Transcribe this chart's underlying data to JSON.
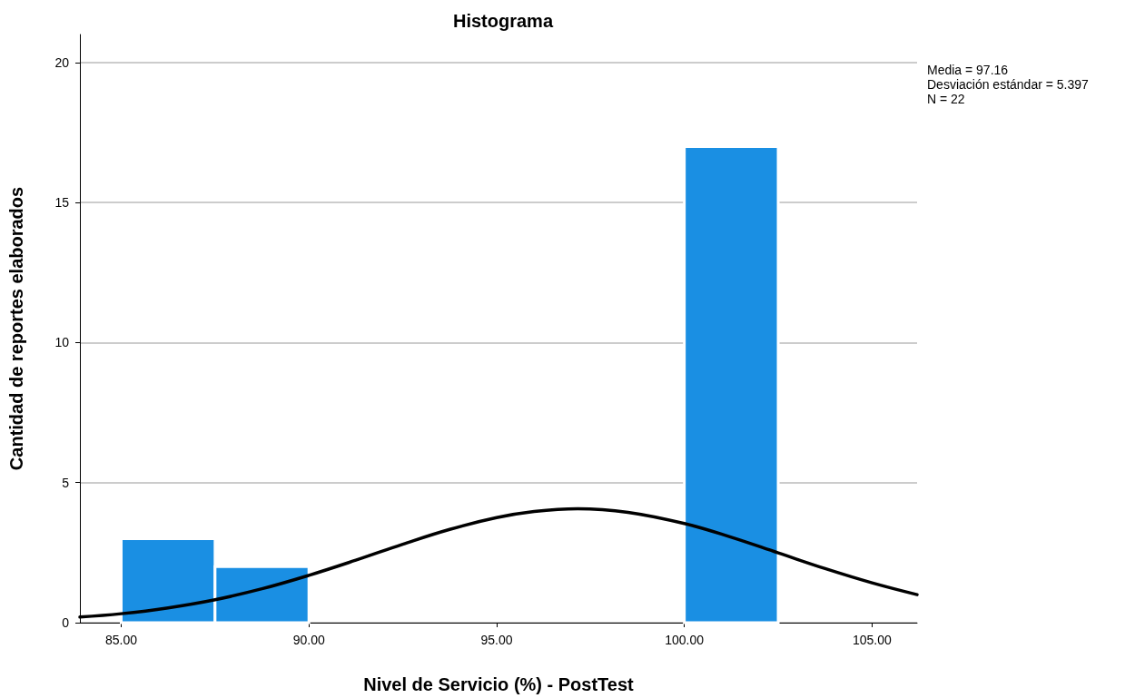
{
  "chart_data": {
    "type": "histogram",
    "title": "Histograma",
    "xlabel": "Nivel de Servicio (%) - PostTest",
    "ylabel": "Cantidad de reportes elaborados",
    "annotations": [
      "Media = 97.16",
      "Desviación estándar = 5.397",
      "N = 22"
    ],
    "xlim": [
      83.9,
      106.2
    ],
    "xticks": [
      {
        "value": 85,
        "label": "85.00"
      },
      {
        "value": 90,
        "label": "90.00"
      },
      {
        "value": 95,
        "label": "95.00"
      },
      {
        "value": 100,
        "label": "100.00"
      },
      {
        "value": 105,
        "label": "105.00"
      }
    ],
    "ylim": [
      0,
      21
    ],
    "yticks": [
      0,
      5,
      10,
      15,
      20
    ],
    "grid": "y",
    "series": [
      {
        "color": "#1a8fe3",
        "bins": [
          85,
          87.5,
          90,
          92.5,
          95,
          97.5,
          100,
          102.5
        ],
        "values": [
          3,
          2,
          0,
          0,
          0,
          0,
          17
        ]
      },
      {
        "type": "line",
        "color": "#000000",
        "marker": "none",
        "line_style": "solid",
        "x": [
          83.9,
          85,
          86.25,
          87.5,
          88.75,
          90,
          91.25,
          92.5,
          93.75,
          95,
          96,
          97.16,
          98.5,
          100,
          101.25,
          102.5,
          103.75,
          105,
          106.2
        ],
        "values": [
          0.2,
          0.32,
          0.53,
          0.82,
          1.21,
          1.69,
          2.23,
          2.8,
          3.33,
          3.75,
          3.97,
          4.07,
          3.94,
          3.54,
          3.05,
          2.49,
          1.93,
          1.42,
          1.0
        ]
      }
    ]
  }
}
